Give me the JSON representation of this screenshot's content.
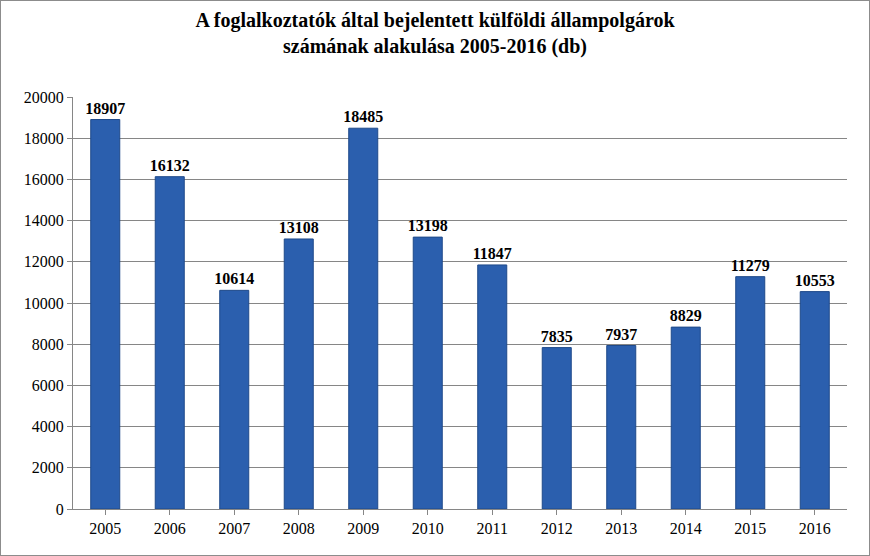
{
  "chart_data": {
    "type": "bar",
    "title": "A foglalkoztatók által bejelentett külföldi állampolgárok számának alakulása 2005-2016 (db)",
    "categories": [
      "2005",
      "2006",
      "2007",
      "2008",
      "2009",
      "2010",
      "2011",
      "2012",
      "2013",
      "2014",
      "2015",
      "2016"
    ],
    "values": [
      18907,
      16132,
      10614,
      13108,
      18485,
      13198,
      11847,
      7835,
      7937,
      8829,
      11279,
      10553
    ],
    "color": "#2b5fae",
    "ylim": [
      0,
      20000
    ],
    "yticks": [
      0,
      2000,
      4000,
      6000,
      8000,
      10000,
      12000,
      14000,
      16000,
      18000,
      20000
    ],
    "grid": true,
    "data_labels": true
  }
}
